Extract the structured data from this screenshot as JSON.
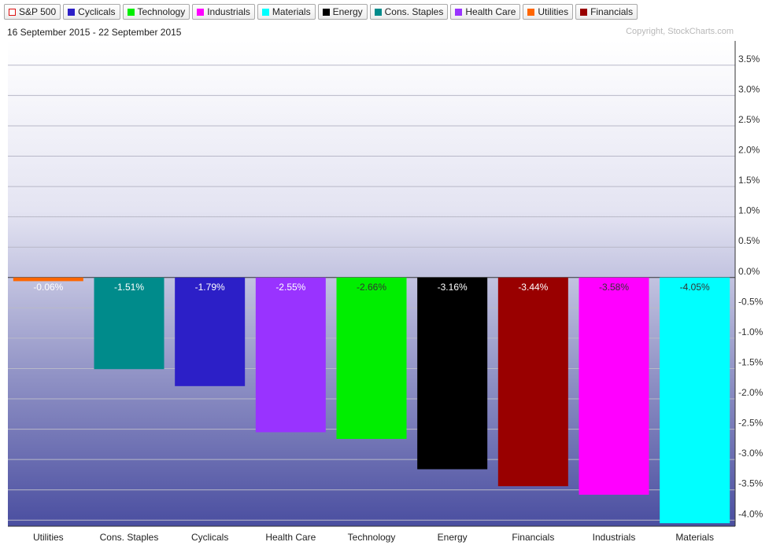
{
  "legend": [
    {
      "label": "S&P 500",
      "color": "#dd1111",
      "hollow": true
    },
    {
      "label": "Cyclicals",
      "color": "#2c1fc7",
      "hollow": false
    },
    {
      "label": "Technology",
      "color": "#00ee00",
      "hollow": false
    },
    {
      "label": "Industrials",
      "color": "#ff00ff",
      "hollow": false
    },
    {
      "label": "Materials",
      "color": "#00ffff",
      "hollow": false
    },
    {
      "label": "Energy",
      "color": "#000000",
      "hollow": false
    },
    {
      "label": "Cons. Staples",
      "color": "#008b8b",
      "hollow": false
    },
    {
      "label": "Health Care",
      "color": "#9933ff",
      "hollow": false
    },
    {
      "label": "Utilities",
      "color": "#ff6600",
      "hollow": false
    },
    {
      "label": "Financials",
      "color": "#990000",
      "hollow": false
    }
  ],
  "date_range": "16 September 2015 - 22 September 2015",
  "copyright": "Copyright, StockCharts.com",
  "chart_data": {
    "type": "bar",
    "title": "",
    "xlabel": "",
    "ylabel": "",
    "ylim": [
      -4.1,
      3.9
    ],
    "grid": true,
    "categories": [
      "Utilities",
      "Cons. Staples",
      "Cyclicals",
      "Health Care",
      "Technology",
      "Energy",
      "Financials",
      "Industrials",
      "Materials"
    ],
    "values": [
      -0.06,
      -1.51,
      -1.79,
      -2.55,
      -2.66,
      -3.16,
      -3.44,
      -3.58,
      -4.05
    ],
    "value_labels": [
      "-0.06%",
      "-1.51%",
      "-1.79%",
      "-2.55%",
      "-2.66%",
      "-3.16%",
      "-3.44%",
      "-3.58%",
      "-4.05%"
    ],
    "bar_colors": [
      "#ff6600",
      "#008b8b",
      "#2c1fc7",
      "#9933ff",
      "#00ee00",
      "#000000",
      "#990000",
      "#ff00ff",
      "#00ffff"
    ],
    "label_colors": [
      "#ffffff",
      "#ffffff",
      "#ffffff",
      "#ffffff",
      "#333333",
      "#ffffff",
      "#ffffff",
      "#333333",
      "#333333"
    ],
    "y_ticks": [
      3.5,
      3.0,
      2.5,
      2.0,
      1.5,
      1.0,
      0.5,
      0.0,
      -0.5,
      -1.0,
      -1.5,
      -2.0,
      -2.5,
      -3.0,
      -3.5,
      -4.0
    ],
    "y_tick_labels": [
      "3.5%",
      "3.0%",
      "2.5%",
      "2.0%",
      "1.5%",
      "1.0%",
      "0.5%",
      "0.0%",
      "-0.5%",
      "-1.0%",
      "-1.5%",
      "-2.0%",
      "-2.5%",
      "-3.0%",
      "-3.5%",
      "-4.0%"
    ]
  }
}
